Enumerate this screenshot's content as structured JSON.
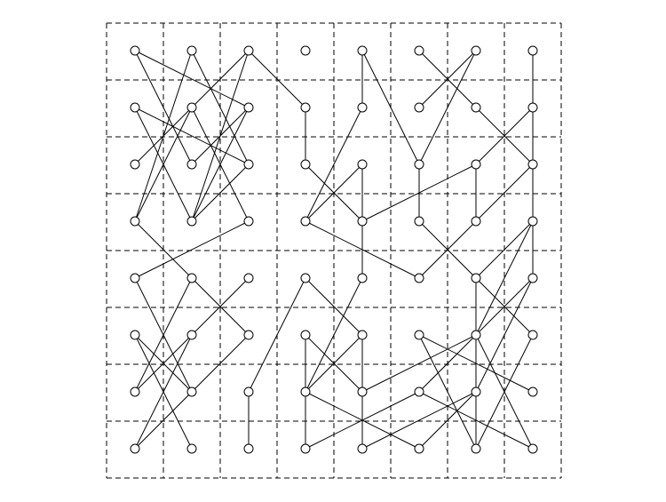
{
  "diagram": {
    "grid": {
      "cols": 8,
      "rows": 8,
      "line_style": "dashed"
    },
    "colors": {
      "grid": "#000000",
      "edge": "#000000",
      "node_fill": "#ffffff",
      "node_stroke": "#000000",
      "background": "#ffffff"
    },
    "nodes": [
      {
        "id": "r0c0",
        "col": 0,
        "row": 0
      },
      {
        "id": "r0c1",
        "col": 1,
        "row": 0
      },
      {
        "id": "r0c2",
        "col": 2,
        "row": 0
      },
      {
        "id": "r0c3",
        "col": 3,
        "row": 0
      },
      {
        "id": "r0c4",
        "col": 4,
        "row": 0
      },
      {
        "id": "r0c5",
        "col": 5,
        "row": 0
      },
      {
        "id": "r0c6",
        "col": 6,
        "row": 0
      },
      {
        "id": "r0c7",
        "col": 7,
        "row": 0
      },
      {
        "id": "r1c0",
        "col": 0,
        "row": 1
      },
      {
        "id": "r1c1",
        "col": 1,
        "row": 1
      },
      {
        "id": "r1c2",
        "col": 2,
        "row": 1
      },
      {
        "id": "r1c3",
        "col": 3,
        "row": 1
      },
      {
        "id": "r1c4",
        "col": 4,
        "row": 1
      },
      {
        "id": "r1c5",
        "col": 5,
        "row": 1
      },
      {
        "id": "r1c6",
        "col": 6,
        "row": 1
      },
      {
        "id": "r1c7",
        "col": 7,
        "row": 1
      },
      {
        "id": "r2c0",
        "col": 0,
        "row": 2
      },
      {
        "id": "r2c1",
        "col": 1,
        "row": 2
      },
      {
        "id": "r2c2",
        "col": 2,
        "row": 2
      },
      {
        "id": "r2c3",
        "col": 3,
        "row": 2
      },
      {
        "id": "r2c4",
        "col": 4,
        "row": 2
      },
      {
        "id": "r2c5",
        "col": 5,
        "row": 2
      },
      {
        "id": "r2c6",
        "col": 6,
        "row": 2
      },
      {
        "id": "r2c7",
        "col": 7,
        "row": 2
      },
      {
        "id": "r3c0",
        "col": 0,
        "row": 3
      },
      {
        "id": "r3c1",
        "col": 1,
        "row": 3
      },
      {
        "id": "r3c2",
        "col": 2,
        "row": 3
      },
      {
        "id": "r3c3",
        "col": 3,
        "row": 3
      },
      {
        "id": "r3c4",
        "col": 4,
        "row": 3
      },
      {
        "id": "r3c5",
        "col": 5,
        "row": 3
      },
      {
        "id": "r3c6",
        "col": 6,
        "row": 3
      },
      {
        "id": "r3c7",
        "col": 7,
        "row": 3
      },
      {
        "id": "r4c0",
        "col": 0,
        "row": 4
      },
      {
        "id": "r4c1",
        "col": 1,
        "row": 4
      },
      {
        "id": "r4c2",
        "col": 2,
        "row": 4
      },
      {
        "id": "r4c3",
        "col": 3,
        "row": 4
      },
      {
        "id": "r4c4",
        "col": 4,
        "row": 4
      },
      {
        "id": "r4c5",
        "col": 5,
        "row": 4
      },
      {
        "id": "r4c6",
        "col": 6,
        "row": 4
      },
      {
        "id": "r4c7",
        "col": 7,
        "row": 4
      },
      {
        "id": "r5c0",
        "col": 0,
        "row": 5
      },
      {
        "id": "r5c1",
        "col": 1,
        "row": 5
      },
      {
        "id": "r5c2",
        "col": 2,
        "row": 5
      },
      {
        "id": "r5c3",
        "col": 3,
        "row": 5
      },
      {
        "id": "r5c4",
        "col": 4,
        "row": 5
      },
      {
        "id": "r5c5",
        "col": 5,
        "row": 5
      },
      {
        "id": "r5c6",
        "col": 6,
        "row": 5
      },
      {
        "id": "r5c7",
        "col": 7,
        "row": 5
      },
      {
        "id": "r6c0",
        "col": 0,
        "row": 6
      },
      {
        "id": "r6c1",
        "col": 1,
        "row": 6
      },
      {
        "id": "r6c2",
        "col": 2,
        "row": 6
      },
      {
        "id": "r6c3",
        "col": 3,
        "row": 6
      },
      {
        "id": "r6c4",
        "col": 4,
        "row": 6
      },
      {
        "id": "r6c5",
        "col": 5,
        "row": 6
      },
      {
        "id": "r6c6",
        "col": 6,
        "row": 6
      },
      {
        "id": "r6c7",
        "col": 7,
        "row": 6
      },
      {
        "id": "r7c0",
        "col": 0,
        "row": 7
      },
      {
        "id": "r7c1",
        "col": 1,
        "row": 7
      },
      {
        "id": "r7c2",
        "col": 2,
        "row": 7
      },
      {
        "id": "r7c3",
        "col": 3,
        "row": 7
      },
      {
        "id": "r7c4",
        "col": 4,
        "row": 7
      },
      {
        "id": "r7c5",
        "col": 5,
        "row": 7
      },
      {
        "id": "r7c6",
        "col": 6,
        "row": 7
      },
      {
        "id": "r7c7",
        "col": 7,
        "row": 7
      }
    ],
    "edges": [
      [
        "r0c0",
        "r1c2"
      ],
      [
        "r0c0",
        "r2c1"
      ],
      [
        "r0c1",
        "r2c2"
      ],
      [
        "r0c1",
        "r3c0"
      ],
      [
        "r0c2",
        "r2c0"
      ],
      [
        "r0c2",
        "r3c1"
      ],
      [
        "r1c0",
        "r2c2"
      ],
      [
        "r1c0",
        "r3c1"
      ],
      [
        "r1c1",
        "r3c2"
      ],
      [
        "r1c1",
        "r3c0"
      ],
      [
        "r1c2",
        "r2c1"
      ],
      [
        "r1c2",
        "r3c1"
      ],
      [
        "r0c2",
        "r1c3"
      ],
      [
        "r1c3",
        "r2c3"
      ],
      [
        "r0c4",
        "r1c4"
      ],
      [
        "r0c6",
        "r1c5"
      ],
      [
        "r0c6",
        "r2c5"
      ],
      [
        "r0c5",
        "r1c6"
      ],
      [
        "r0c4",
        "r2c5"
      ],
      [
        "r0c7",
        "r1c7"
      ],
      [
        "r1c7",
        "r2c6"
      ],
      [
        "r1c6",
        "r2c7"
      ],
      [
        "r1c4",
        "r3c3"
      ],
      [
        "r2c3",
        "r3c4"
      ],
      [
        "r3c4",
        "r2c6"
      ],
      [
        "r2c4",
        "r3c3"
      ],
      [
        "r3c3",
        "r4c5"
      ],
      [
        "r4c5",
        "r3c6"
      ],
      [
        "r2c5",
        "r3c5"
      ],
      [
        "r3c5",
        "r4c6"
      ],
      [
        "r2c6",
        "r3c6"
      ],
      [
        "r2c7",
        "r3c7"
      ],
      [
        "r3c7",
        "r4c6"
      ],
      [
        "r1c7",
        "r4c7"
      ],
      [
        "r3c0",
        "r4c1"
      ],
      [
        "r3c2",
        "r4c0"
      ],
      [
        "r4c0",
        "r6c1"
      ],
      [
        "r4c1",
        "r6c0"
      ],
      [
        "r4c1",
        "r5c2"
      ],
      [
        "r5c0",
        "r6c1"
      ],
      [
        "r5c0",
        "r7c1"
      ],
      [
        "r5c1",
        "r7c0"
      ],
      [
        "r4c2",
        "r6c0"
      ],
      [
        "r5c2",
        "r7c0"
      ],
      [
        "r2c4",
        "r4c4"
      ],
      [
        "r4c3",
        "r5c4"
      ],
      [
        "r4c3",
        "r6c2"
      ],
      [
        "r6c2",
        "r7c2"
      ],
      [
        "r5c4",
        "r6c3"
      ],
      [
        "r5c4",
        "r7c4"
      ],
      [
        "r5c3",
        "r7c3"
      ],
      [
        "r5c3",
        "r6c4"
      ],
      [
        "r4c4",
        "r6c3"
      ],
      [
        "r6c3",
        "r7c5"
      ],
      [
        "r6c4",
        "r5c6"
      ],
      [
        "r5c5",
        "r7c6"
      ],
      [
        "r5c5",
        "r6c7"
      ],
      [
        "r6c5",
        "r7c3"
      ],
      [
        "r6c5",
        "r7c7"
      ],
      [
        "r6c6",
        "r7c4"
      ],
      [
        "r4c6",
        "r7c6"
      ],
      [
        "r4c7",
        "r6c6"
      ],
      [
        "r5c6",
        "r7c7"
      ],
      [
        "r5c7",
        "r7c6"
      ],
      [
        "r6c6",
        "r7c5"
      ],
      [
        "r4c7",
        "r6c5"
      ],
      [
        "r3c7",
        "r5c6"
      ],
      [
        "r4c6",
        "r5c7"
      ],
      [
        "r2c2",
        "r3c1"
      ],
      [
        "r2c7",
        "r3c6"
      ]
    ]
  }
}
